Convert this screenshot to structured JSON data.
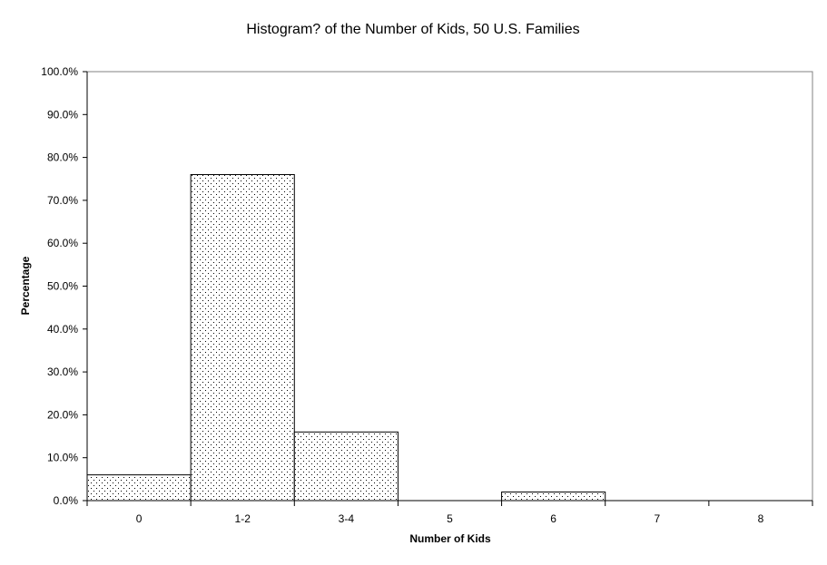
{
  "chart_data": {
    "type": "bar",
    "title": "Histogram? of the Number of Kids, 50 U.S. Families",
    "xlabel": "Number of Kids",
    "ylabel": "Percentage",
    "categories": [
      "0",
      "1-2",
      "3-4",
      "5",
      "6",
      "7",
      "8"
    ],
    "values": [
      6.0,
      76.0,
      16.0,
      0.0,
      2.0,
      0.0,
      0.0
    ],
    "ylim": [
      0,
      100
    ],
    "y_ticks": [
      "0.0%",
      "10.0%",
      "20.0%",
      "30.0%",
      "40.0%",
      "50.0%",
      "60.0%",
      "70.0%",
      "80.0%",
      "90.0%",
      "100.0%"
    ],
    "grid": false,
    "legend": "none",
    "bar_fill": "dotted pattern",
    "colors": {
      "bar_stroke": "#000000",
      "bar_dots": "#000000",
      "background": "#ffffff"
    }
  }
}
